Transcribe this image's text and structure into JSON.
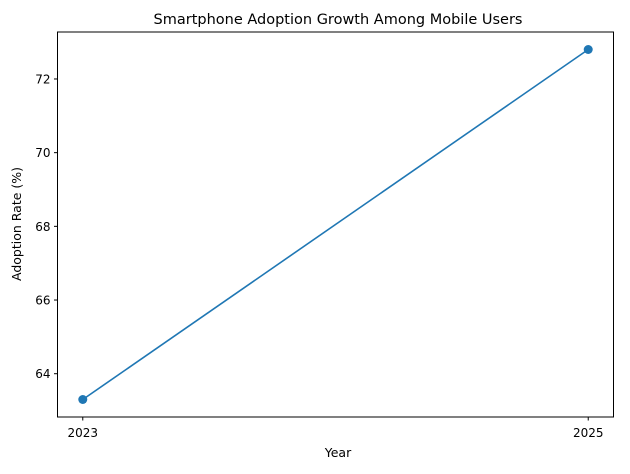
{
  "chart_data": {
    "type": "line",
    "title": "Smartphone Adoption Growth Among Mobile Users",
    "xlabel": "Year",
    "ylabel": "Adoption Rate (%)",
    "x": [
      2023,
      2025
    ],
    "x_tick_labels": [
      "2023",
      "2025"
    ],
    "series": [
      {
        "values": [
          63.3,
          72.8
        ],
        "color": "#1f77b4",
        "marker": "circle"
      }
    ],
    "xlim": [
      2022.9,
      2025.1
    ],
    "ylim": [
      62.825,
      73.275
    ],
    "y_ticks": [
      64,
      66,
      68,
      70,
      72
    ],
    "grid": false
  }
}
